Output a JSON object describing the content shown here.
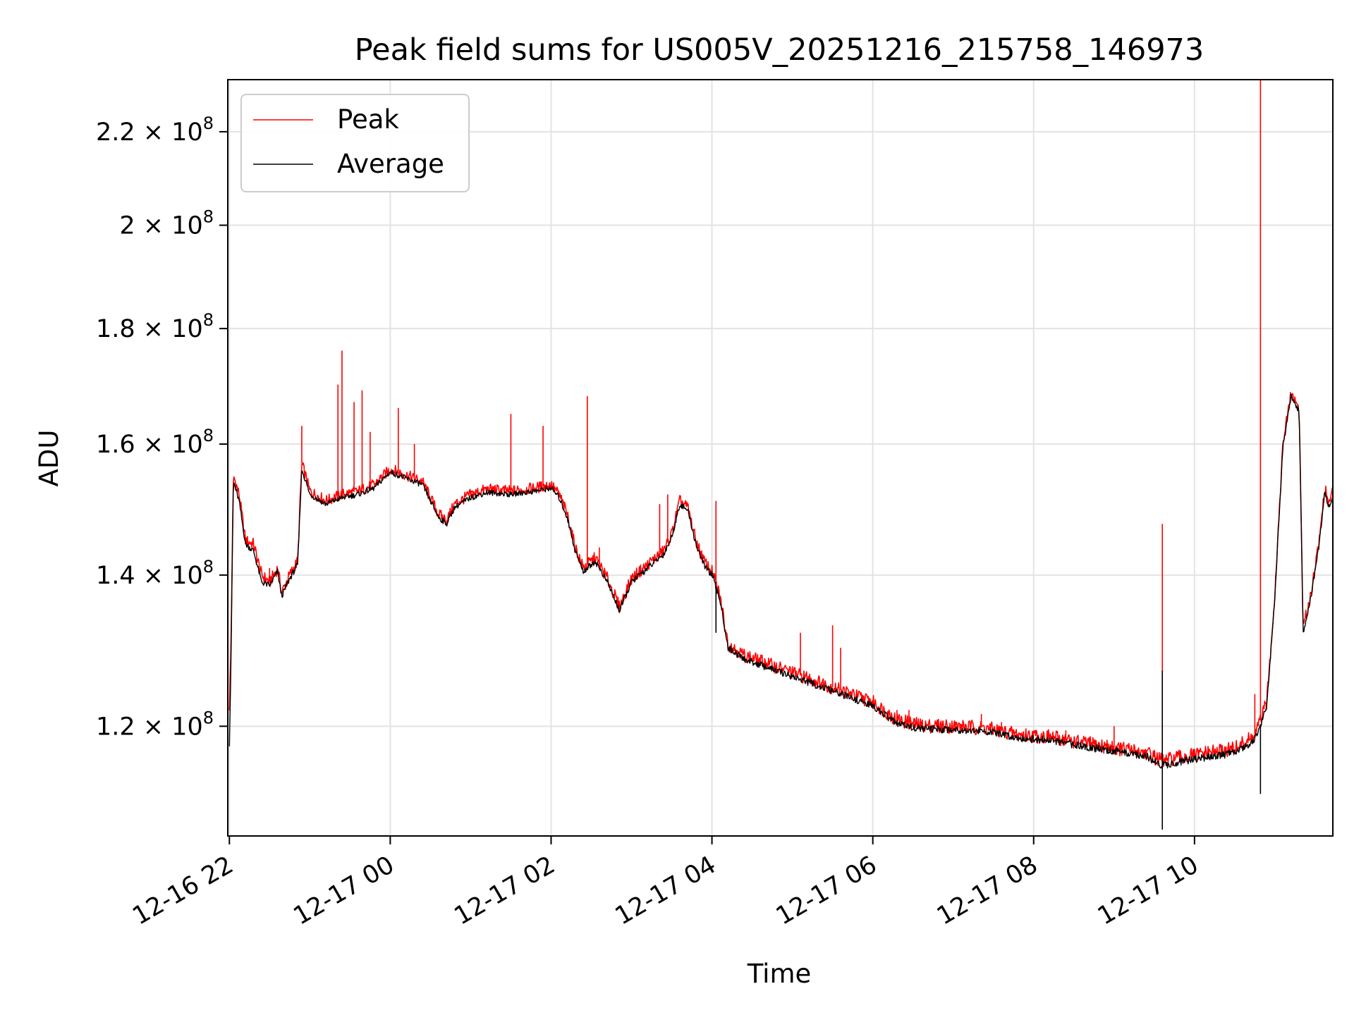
{
  "chart_data": {
    "type": "line",
    "title": "Peak field sums for US005V_20251216_215758_146973",
    "xlabel": "Time",
    "ylabel": "ADU",
    "y_scale": "log",
    "ylim": [
      107300000,
      232000000
    ],
    "x_unit": "hours since 12-16 22:00",
    "xlim": [
      -0.02,
      13.72
    ],
    "grid": true,
    "legend_location": "upper-left",
    "x_ticks": [
      {
        "value": 0,
        "label": "12-16 22"
      },
      {
        "value": 2,
        "label": "12-17 00"
      },
      {
        "value": 4,
        "label": "12-17 02"
      },
      {
        "value": 6,
        "label": "12-17 04"
      },
      {
        "value": 8,
        "label": "12-17 06"
      },
      {
        "value": 10,
        "label": "12-17 08"
      },
      {
        "value": 12,
        "label": "12-17 10"
      }
    ],
    "y_ticks": [
      {
        "value": 120000000,
        "mantissa": "1.2",
        "exponent": "8"
      },
      {
        "value": 140000000,
        "mantissa": "1.4",
        "exponent": "8"
      },
      {
        "value": 160000000,
        "mantissa": "1.6",
        "exponent": "8"
      },
      {
        "value": 180000000,
        "mantissa": "1.8",
        "exponent": "8"
      },
      {
        "value": 200000000,
        "mantissa": "2",
        "exponent": "8"
      },
      {
        "value": 220000000,
        "mantissa": "2.2",
        "exponent": "8"
      }
    ],
    "series": [
      {
        "name": "Peak",
        "color": "#ff0000",
        "baseline_offset": 800000,
        "points": [
          [
            0.0,
            122500000
          ],
          [
            0.02,
            130000000
          ],
          [
            0.05,
            155000000
          ],
          [
            0.12,
            152000000
          ],
          [
            0.2,
            145000000
          ],
          [
            0.3,
            144500000
          ],
          [
            0.4,
            140000000
          ],
          [
            0.5,
            139000000
          ],
          [
            0.6,
            141000000
          ],
          [
            0.65,
            137500000
          ],
          [
            0.75,
            140000000
          ],
          [
            0.85,
            142000000
          ],
          [
            0.9,
            157000000
          ],
          [
            1.0,
            152500000
          ],
          [
            1.2,
            151000000
          ],
          [
            1.4,
            152000000
          ],
          [
            1.6,
            152500000
          ],
          [
            1.8,
            153500000
          ],
          [
            2.0,
            156000000
          ],
          [
            2.2,
            155000000
          ],
          [
            2.4,
            154000000
          ],
          [
            2.6,
            149000000
          ],
          [
            2.7,
            148000000
          ],
          [
            2.8,
            150500000
          ],
          [
            3.0,
            152000000
          ],
          [
            3.2,
            152800000
          ],
          [
            3.5,
            152500000
          ],
          [
            3.8,
            153000000
          ],
          [
            4.0,
            153500000
          ],
          [
            4.1,
            152000000
          ],
          [
            4.2,
            149000000
          ],
          [
            4.3,
            144000000
          ],
          [
            4.4,
            141000000
          ],
          [
            4.55,
            142500000
          ],
          [
            4.7,
            139500000
          ],
          [
            4.85,
            135500000
          ],
          [
            5.0,
            139500000
          ],
          [
            5.2,
            141500000
          ],
          [
            5.4,
            143500000
          ],
          [
            5.5,
            146000000
          ],
          [
            5.6,
            151000000
          ],
          [
            5.7,
            150000000
          ],
          [
            5.8,
            145000000
          ],
          [
            5.9,
            142000000
          ],
          [
            6.0,
            140500000
          ],
          [
            6.1,
            137000000
          ],
          [
            6.2,
            130500000
          ],
          [
            6.4,
            129000000
          ],
          [
            6.8,
            127500000
          ],
          [
            7.2,
            126000000
          ],
          [
            7.6,
            124500000
          ],
          [
            8.0,
            123000000
          ],
          [
            8.3,
            120800000
          ],
          [
            8.6,
            120100000
          ],
          [
            9.0,
            120000000
          ],
          [
            9.4,
            119800000
          ],
          [
            9.8,
            119000000
          ],
          [
            10.2,
            118700000
          ],
          [
            10.6,
            118000000
          ],
          [
            11.0,
            117400000
          ],
          [
            11.4,
            116800000
          ],
          [
            11.6,
            115800000
          ],
          [
            11.8,
            116200000
          ],
          [
            12.2,
            116800000
          ],
          [
            12.5,
            117300000
          ],
          [
            12.75,
            118800000
          ],
          [
            12.9,
            123000000
          ],
          [
            13.0,
            137500000
          ],
          [
            13.1,
            160000000
          ],
          [
            13.2,
            168500000
          ],
          [
            13.3,
            166000000
          ],
          [
            13.35,
            132500000
          ],
          [
            13.45,
            137500000
          ],
          [
            13.55,
            145000000
          ],
          [
            13.62,
            153000000
          ],
          [
            13.67,
            150500000
          ],
          [
            13.72,
            152500000
          ]
        ],
        "spikes": [
          [
            0.5,
            141000000
          ],
          [
            0.9,
            163000000
          ],
          [
            1.35,
            170000000
          ],
          [
            1.4,
            176000000
          ],
          [
            1.55,
            167000000
          ],
          [
            1.65,
            169000000
          ],
          [
            1.75,
            162000000
          ],
          [
            2.1,
            166000000
          ],
          [
            2.3,
            160000000
          ],
          [
            3.5,
            165000000
          ],
          [
            3.9,
            163000000
          ],
          [
            4.45,
            168000000
          ],
          [
            4.6,
            144000000
          ],
          [
            5.35,
            150500000
          ],
          [
            5.45,
            152000000
          ],
          [
            6.05,
            151000000
          ],
          [
            7.1,
            132000000
          ],
          [
            7.5,
            133000000
          ],
          [
            7.6,
            130000000
          ],
          [
            8.3,
            122000000
          ],
          [
            8.45,
            122000000
          ],
          [
            9.35,
            121500000
          ],
          [
            9.6,
            120500000
          ],
          [
            10.4,
            119500000
          ],
          [
            11.0,
            120000000
          ],
          [
            11.6,
            147500000
          ],
          [
            12.75,
            124000000
          ],
          [
            12.82,
            232000000
          ]
        ]
      },
      {
        "name": "Average",
        "color": "#000000",
        "baseline_offset": 0,
        "points": [
          [
            0.0,
            118000000
          ],
          [
            0.02,
            128000000
          ],
          [
            0.05,
            154000000
          ],
          [
            0.12,
            151000000
          ],
          [
            0.2,
            144500000
          ],
          [
            0.3,
            143500000
          ],
          [
            0.4,
            139000000
          ],
          [
            0.5,
            138500000
          ],
          [
            0.6,
            140500000
          ],
          [
            0.65,
            137000000
          ],
          [
            0.75,
            139500000
          ],
          [
            0.85,
            141500000
          ],
          [
            0.9,
            156000000
          ],
          [
            1.0,
            152000000
          ],
          [
            1.2,
            150500000
          ],
          [
            1.4,
            151500000
          ],
          [
            1.6,
            152000000
          ],
          [
            1.8,
            153000000
          ],
          [
            2.0,
            155500000
          ],
          [
            2.2,
            154500000
          ],
          [
            2.4,
            153500000
          ],
          [
            2.6,
            148500000
          ],
          [
            2.7,
            147500000
          ],
          [
            2.8,
            150000000
          ],
          [
            3.0,
            151500000
          ],
          [
            3.2,
            152300000
          ],
          [
            3.5,
            152000000
          ],
          [
            3.8,
            152500000
          ],
          [
            4.0,
            153000000
          ],
          [
            4.1,
            151500000
          ],
          [
            4.2,
            148500000
          ],
          [
            4.3,
            143500000
          ],
          [
            4.4,
            140500000
          ],
          [
            4.55,
            142000000
          ],
          [
            4.7,
            139000000
          ],
          [
            4.85,
            135000000
          ],
          [
            5.0,
            139000000
          ],
          [
            5.2,
            141000000
          ],
          [
            5.4,
            143000000
          ],
          [
            5.5,
            145500000
          ],
          [
            5.6,
            150500000
          ],
          [
            5.7,
            149500000
          ],
          [
            5.8,
            144500000
          ],
          [
            5.9,
            141500000
          ],
          [
            6.0,
            140000000
          ],
          [
            6.1,
            136500000
          ],
          [
            6.2,
            130000000
          ],
          [
            6.4,
            128500000
          ],
          [
            6.8,
            127000000
          ],
          [
            7.2,
            125500000
          ],
          [
            7.6,
            124000000
          ],
          [
            8.0,
            122500000
          ],
          [
            8.3,
            120300000
          ],
          [
            8.6,
            119700000
          ],
          [
            9.0,
            119600000
          ],
          [
            9.4,
            119400000
          ],
          [
            9.8,
            118600000
          ],
          [
            10.2,
            118300000
          ],
          [
            10.6,
            117600000
          ],
          [
            11.0,
            117000000
          ],
          [
            11.4,
            116400000
          ],
          [
            11.6,
            115300000
          ],
          [
            11.8,
            115700000
          ],
          [
            12.2,
            116300000
          ],
          [
            12.5,
            116800000
          ],
          [
            12.75,
            118300000
          ],
          [
            12.9,
            122500000
          ],
          [
            13.0,
            137000000
          ],
          [
            13.1,
            159500000
          ],
          [
            13.2,
            168000000
          ],
          [
            13.3,
            165500000
          ],
          [
            13.35,
            132000000
          ],
          [
            13.45,
            137000000
          ],
          [
            13.55,
            144500000
          ],
          [
            13.62,
            152500000
          ],
          [
            13.67,
            150000000
          ],
          [
            13.72,
            152000000
          ]
        ],
        "spikes": [
          [
            6.05,
            132000000
          ],
          [
            11.6,
            127000000
          ],
          [
            11.6,
            108000000
          ],
          [
            12.82,
            112000000
          ]
        ]
      }
    ]
  }
}
